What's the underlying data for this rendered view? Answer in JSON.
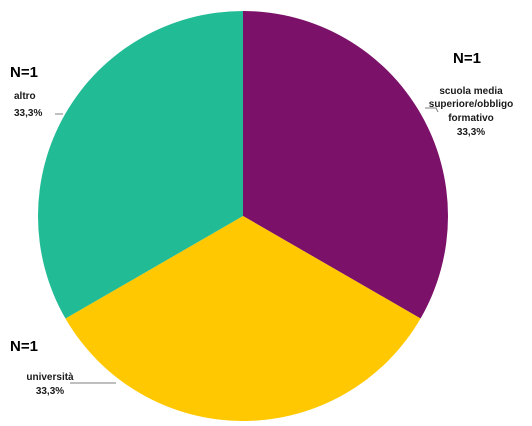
{
  "chart_data": {
    "type": "pie",
    "title": "",
    "slices": [
      {
        "category": "scuola media superiore/obbligo formativo",
        "label_lines": [
          "scuola media",
          "superiore/obbligo",
          "formativo"
        ],
        "percent_label": "33,3%",
        "n_label": "N=1",
        "value": 1,
        "color": "#7B1169"
      },
      {
        "category": "università",
        "label_lines": [
          "università"
        ],
        "percent_label": "33,3%",
        "n_label": "N=1",
        "value": 1,
        "color": "#FFC800"
      },
      {
        "category": "altro",
        "label_lines": [
          "altro"
        ],
        "percent_label": "33,3%",
        "n_label": "N=1",
        "value": 1,
        "color": "#21BB95"
      }
    ],
    "start_angle_deg": 0,
    "direction": "clockwise",
    "legend": "none"
  }
}
